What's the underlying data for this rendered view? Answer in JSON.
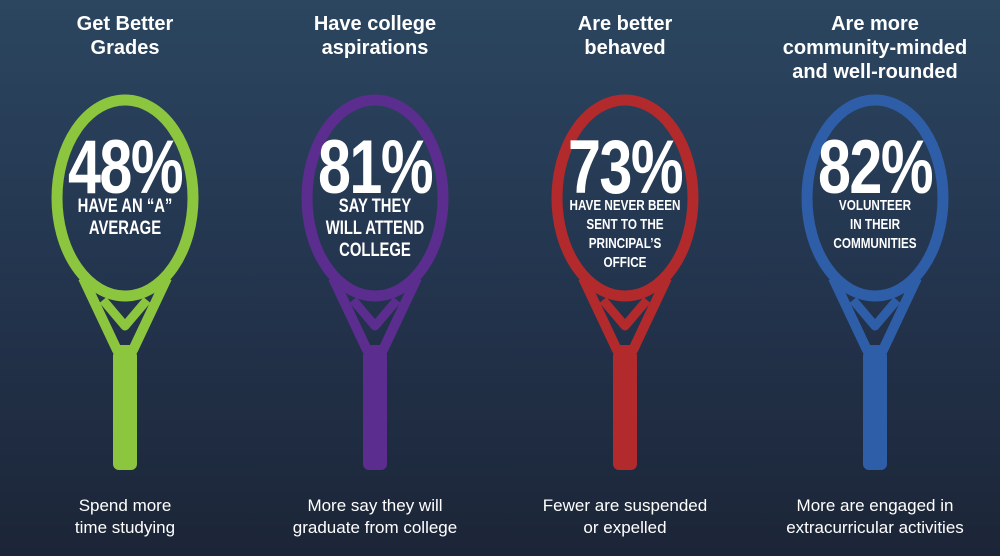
{
  "colors": {
    "green": "#8cc63f",
    "purple": "#5b2d8e",
    "red": "#b22a2c",
    "blue": "#2f5ea9"
  },
  "columns": [
    {
      "heading": "Get Better\nGrades",
      "percent": "48%",
      "description": "HAVE AN “A”\nAVERAGE",
      "caption": "Spend more\ntime studying",
      "color": "#8cc63f"
    },
    {
      "heading": "Have college\naspirations",
      "percent": "81%",
      "description": "SAY THEY\nWILL ATTEND\nCOLLEGE",
      "caption": "More say they will\ngraduate from college",
      "color": "#5b2d8e"
    },
    {
      "heading": "Are better\nbehaved",
      "percent": "73%",
      "description": "HAVE NEVER BEEN\nSENT TO THE\nPRINCIPAL’S\nOFFICE",
      "caption": "Fewer are suspended\nor expelled",
      "color": "#b22a2c"
    },
    {
      "heading": "Are more\ncommunity-minded\nand well-rounded",
      "percent": "82%",
      "description": "VOLUNTEER\nIN THEIR\nCOMMUNITIES",
      "caption": "More are engaged in\nextracurricular activities",
      "color": "#2f5ea9"
    }
  ]
}
